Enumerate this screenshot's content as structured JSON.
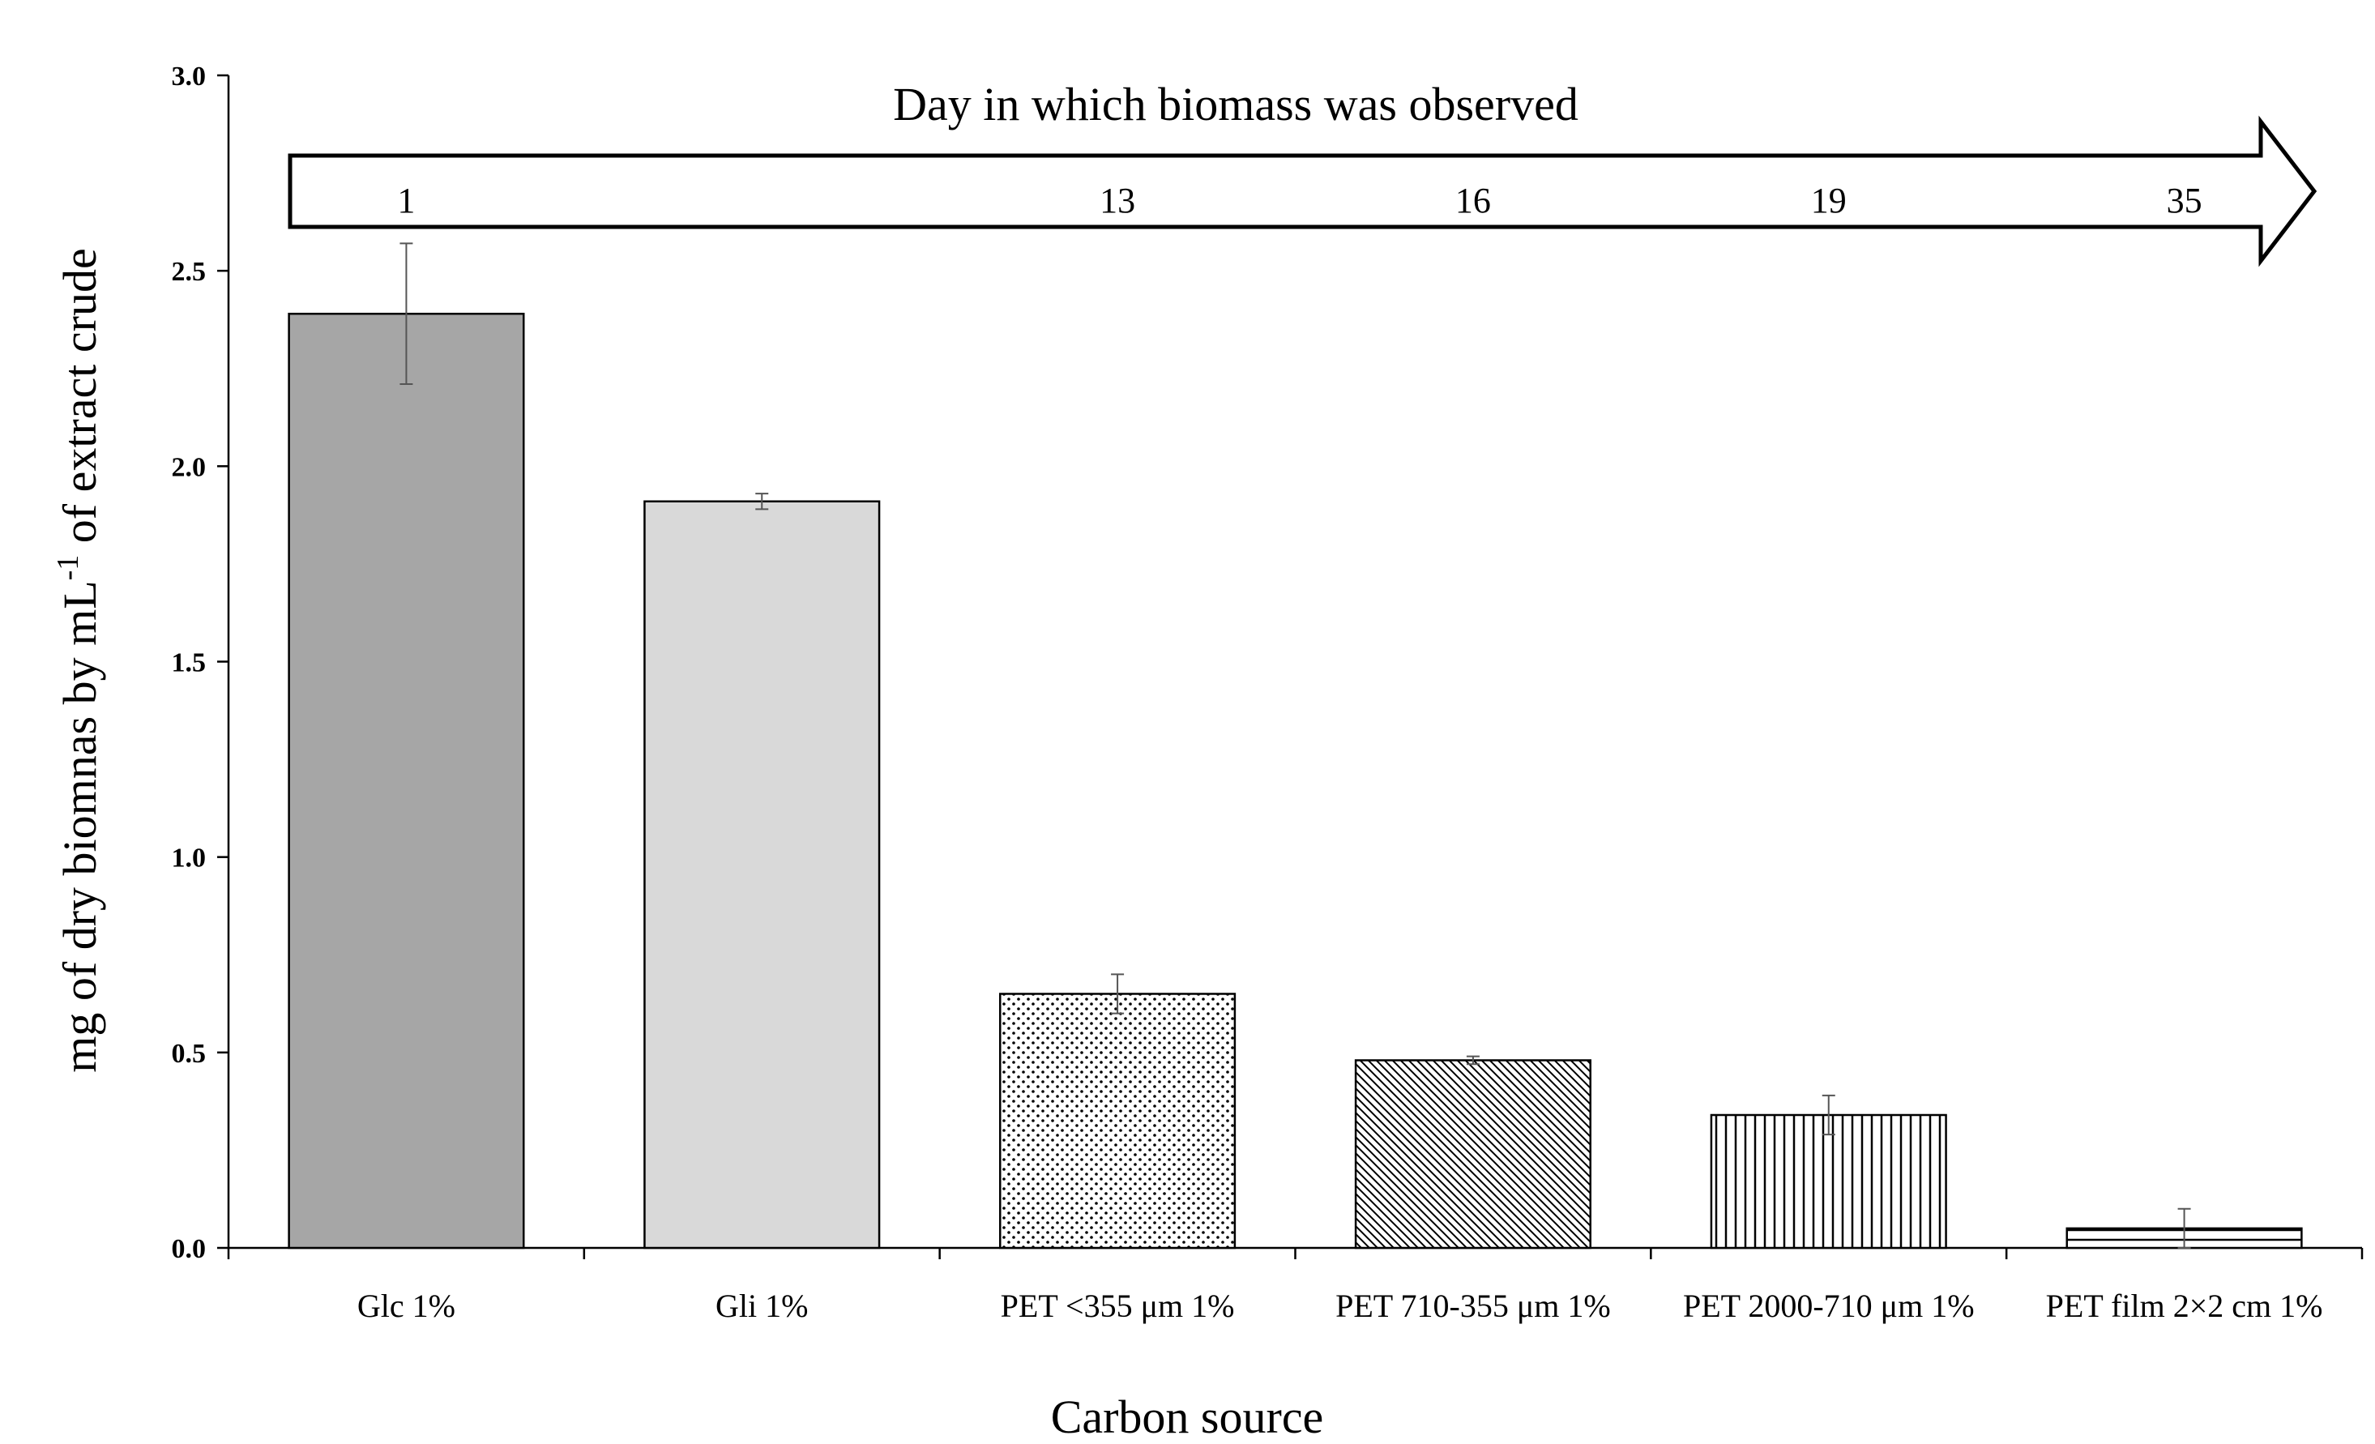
{
  "chart_data": {
    "type": "bar",
    "xlabel": "Carbon  source",
    "ylabel": "mg of dry biomnas by mL",
    "ylabel_superscript": "-1",
    "ylabel_suffix": " of extract crude",
    "ylim": [
      0,
      3.0
    ],
    "yticks": [
      "0.0",
      "0.5",
      "1.0",
      "1.5",
      "2.0",
      "2.5",
      "3.0"
    ],
    "grid": false,
    "categories": [
      "Glc 1%",
      "Gli 1%",
      "PET <355 μm 1%",
      "PET 710-355 μm 1%",
      "PET 2000-710 μm 1%",
      "PET film 2×2 cm 1%"
    ],
    "values": [
      2.39,
      1.91,
      0.65,
      0.48,
      0.34,
      0.05
    ],
    "errors": [
      0.18,
      0.02,
      0.05,
      0.01,
      0.05,
      0.05
    ],
    "fills": [
      "solid-dark-gray",
      "solid-light-gray",
      "dots",
      "diagonal-hatch",
      "vertical-lines",
      "horizontal-lines"
    ],
    "colors": {
      "dark_gray": "#a6a6a6",
      "light_gray": "#d9d9d9",
      "line": "#000000"
    },
    "annotation": {
      "title": "Day in which biomass was observed",
      "days": [
        "1",
        "13",
        "16",
        "19",
        "35"
      ],
      "day_category_positions": [
        0,
        2,
        3,
        4,
        5
      ]
    }
  }
}
